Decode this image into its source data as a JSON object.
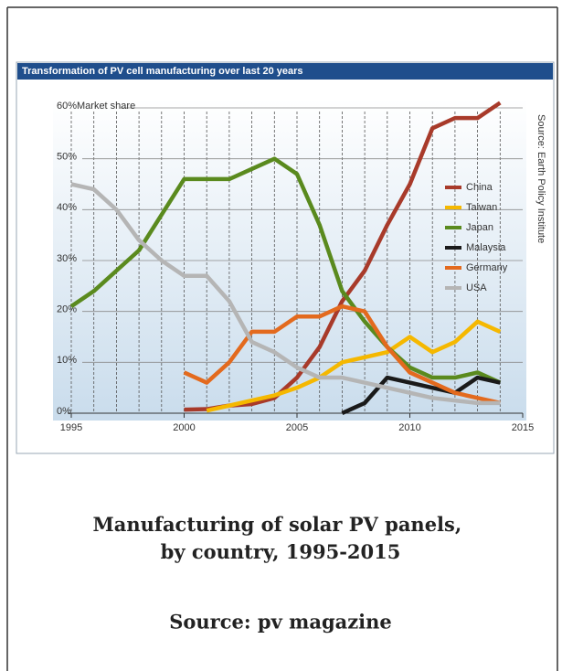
{
  "chart_data": {
    "type": "line",
    "title": "Transformation of PV cell manufacturing over last 20 years",
    "y_axis_label": "Market share",
    "source_note": "Source: Earth Policy Institute",
    "x": [
      1995,
      1996,
      1997,
      1998,
      1999,
      2000,
      2001,
      2002,
      2003,
      2004,
      2005,
      2006,
      2007,
      2008,
      2009,
      2010,
      2011,
      2012,
      2013,
      2014
    ],
    "xlim": [
      1995,
      2015
    ],
    "xticks": [
      1995,
      2000,
      2005,
      2010,
      2015
    ],
    "ylim": [
      0,
      60
    ],
    "yticks": [
      {
        "value": 0,
        "label": "0%"
      },
      {
        "value": 10,
        "label": "10%"
      },
      {
        "value": 20,
        "label": "20%"
      },
      {
        "value": 30,
        "label": "30%"
      },
      {
        "value": 40,
        "label": "40%"
      },
      {
        "value": 50,
        "label": "50%"
      },
      {
        "value": 60,
        "label": "60%"
      }
    ],
    "grid": true,
    "series": [
      {
        "name": "China",
        "color": "#a83a2a",
        "values": [
          null,
          null,
          null,
          null,
          null,
          0.7,
          0.8,
          1.5,
          1.8,
          3,
          7,
          13,
          22,
          28,
          37,
          45,
          56,
          58,
          58,
          61
        ]
      },
      {
        "name": "Taiwan",
        "color": "#f5b800",
        "values": [
          null,
          null,
          null,
          null,
          null,
          null,
          0.5,
          1.5,
          2.5,
          3.5,
          5,
          7,
          10,
          11,
          12,
          15,
          12,
          14,
          18,
          16
        ]
      },
      {
        "name": "Japan",
        "color": "#5a8a1e",
        "values": [
          21,
          24,
          28,
          32,
          39,
          46,
          46,
          46,
          48,
          50,
          47,
          37,
          24,
          18,
          13,
          9,
          7,
          7,
          8,
          6
        ]
      },
      {
        "name": "Malaysia",
        "color": "#1a1a1a",
        "values": [
          null,
          null,
          null,
          null,
          null,
          null,
          null,
          null,
          null,
          null,
          null,
          null,
          0,
          2,
          7,
          6,
          5,
          4,
          7,
          6
        ]
      },
      {
        "name": "Germany",
        "color": "#e36a1e",
        "values": [
          null,
          null,
          null,
          null,
          null,
          8,
          6,
          10,
          16,
          16,
          19,
          19,
          21,
          20,
          13,
          8,
          6,
          4,
          3,
          2
        ]
      },
      {
        "name": "USA",
        "color": "#b5b5b5",
        "values": [
          45,
          44,
          40,
          34,
          30,
          27,
          27,
          22,
          14,
          12,
          9,
          7,
          7,
          6,
          5,
          4,
          3,
          2.5,
          2,
          2
        ]
      }
    ]
  },
  "caption": "Manufacturing of solar PV panels, by country, 1995-2015",
  "source": "Source: pv magazine"
}
